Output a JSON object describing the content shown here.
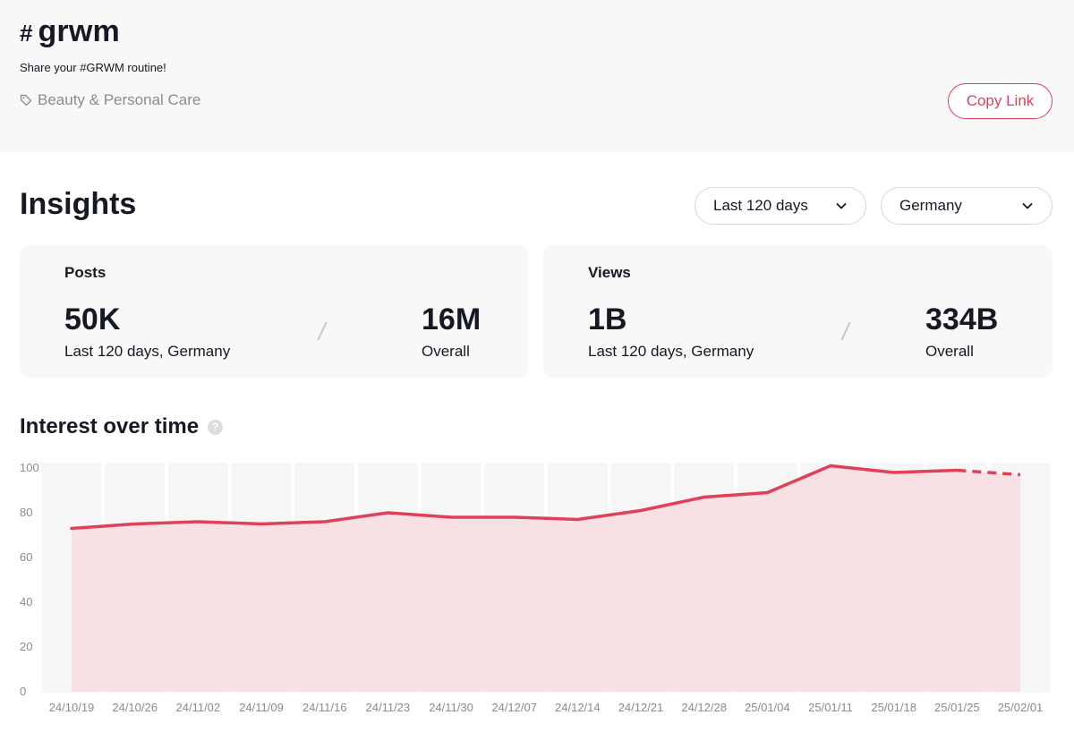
{
  "hashtag": {
    "symbol": "#",
    "name": "grwm",
    "subtitle": "Share your #GRWM routine!",
    "category": "Beauty & Personal Care",
    "copy_link_label": "Copy Link"
  },
  "insights": {
    "title": "Insights",
    "period_filter": "Last 120 days",
    "region_filter": "Germany"
  },
  "stats": {
    "posts": {
      "label": "Posts",
      "period_value": "50K",
      "period_caption": "Last 120 days, Germany",
      "overall_value": "16M",
      "overall_caption": "Overall"
    },
    "views": {
      "label": "Views",
      "period_value": "1B",
      "period_caption": "Last 120 days, Germany",
      "overall_value": "334B",
      "overall_caption": "Overall"
    }
  },
  "interest": {
    "title": "Interest over time",
    "help_glyph": "?"
  },
  "colors": {
    "accent": "#e0405a",
    "area_fill": "#f7e1e5",
    "band": "#f6f6f7"
  },
  "chart_data": {
    "type": "line",
    "categories": [
      "24/10/19",
      "24/10/26",
      "24/11/02",
      "24/11/09",
      "24/11/16",
      "24/11/23",
      "24/11/30",
      "24/12/07",
      "24/12/14",
      "24/12/21",
      "24/12/28",
      "25/01/04",
      "25/01/11",
      "25/01/18",
      "25/01/25",
      "25/02/01"
    ],
    "y_ticks": [
      0,
      20,
      40,
      60,
      80,
      100
    ],
    "ylim": [
      0,
      100
    ],
    "series": [
      {
        "values": [
          73,
          75,
          76,
          75,
          76,
          80,
          78,
          78,
          77,
          81,
          87,
          89,
          101,
          98,
          99,
          97
        ],
        "projected_from_index": 14
      }
    ],
    "grid": false,
    "title": "",
    "xlabel": "",
    "ylabel": ""
  }
}
